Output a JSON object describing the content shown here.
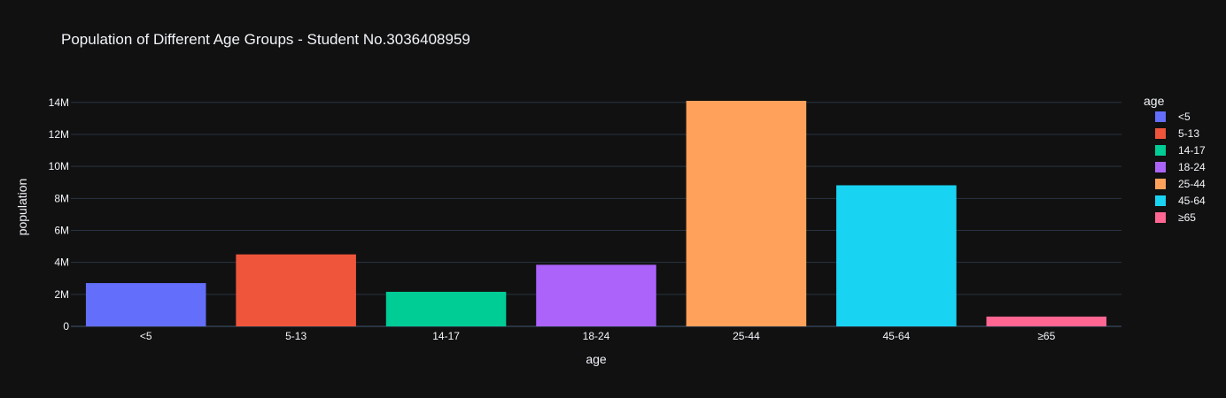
{
  "chart_data": {
    "type": "bar",
    "title": "Population of Different Age Groups - Student No.3036408959",
    "xlabel": "age",
    "ylabel": "population",
    "categories": [
      "<5",
      "5-13",
      "14-17",
      "18-24",
      "25-44",
      "45-64",
      "≥65"
    ],
    "values": [
      2706000,
      4500000,
      2160000,
      3850000,
      14100000,
      8820000,
      612000
    ],
    "colors": [
      "#636efa",
      "#EF553B",
      "#00cc96",
      "#ab63fa",
      "#FFA15A",
      "#19d3f3",
      "#FF6692"
    ],
    "ylim": [
      0,
      14100000
    ],
    "yticks": [
      0,
      2000000,
      4000000,
      6000000,
      8000000,
      10000000,
      12000000,
      14000000
    ],
    "ytick_labels": [
      "0",
      "2M",
      "4M",
      "6M",
      "8M",
      "10M",
      "12M",
      "14M"
    ],
    "grid": true,
    "legend": {
      "title": "age",
      "position": "right",
      "items": [
        "<5",
        "5-13",
        "14-17",
        "18-24",
        "25-44",
        "45-64",
        "≥65"
      ]
    }
  },
  "theme": {
    "background": "#111111",
    "grid": "#283442",
    "text": "#f2f5fa"
  }
}
